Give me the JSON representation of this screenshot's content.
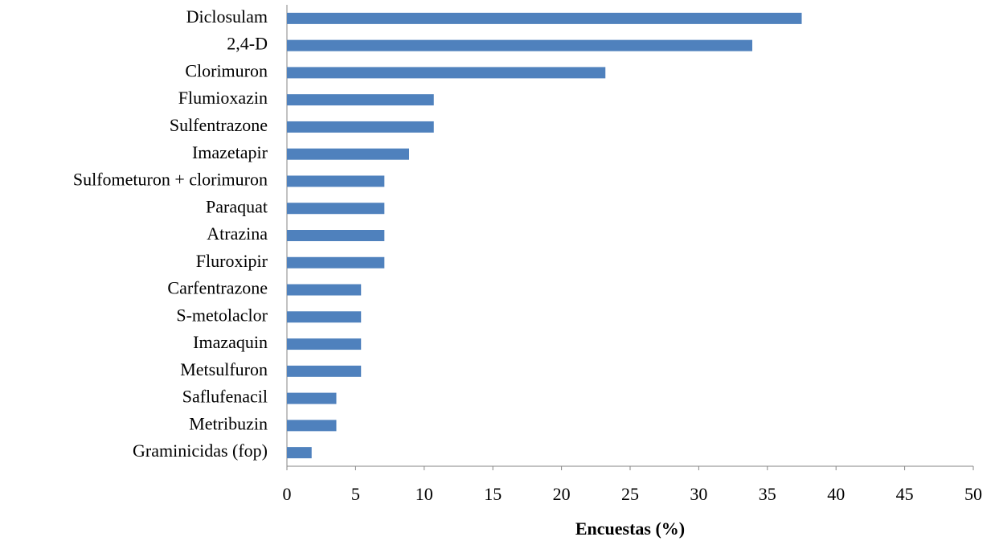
{
  "chart_data": {
    "type": "bar",
    "orientation": "horizontal",
    "x_label": "Encuestas (%)",
    "categories": [
      "Diclosulam",
      "2,4-D",
      "Clorimuron",
      "Flumioxazin",
      "Sulfentrazone",
      "Imazetapir",
      "Sulfometuron + clorimuron",
      "Paraquat",
      "Atrazina",
      "Fluroxipir",
      "Carfentrazone",
      "S-metolaclor",
      "Imazaquin",
      "Metsulfuron",
      "Saflufenacil",
      "Metribuzin",
      "Graminicidas (fop)"
    ],
    "values": [
      37.5,
      33.9,
      23.2,
      10.7,
      10.7,
      8.9,
      7.1,
      7.1,
      7.1,
      7.1,
      5.4,
      5.4,
      5.4,
      5.4,
      3.6,
      3.6,
      1.8
    ],
    "color": "#4f81bd",
    "xlim": [
      0,
      50
    ],
    "xticks": [
      0,
      5,
      10,
      15,
      20,
      25,
      30,
      35,
      40,
      45,
      50
    ],
    "grid": false
  }
}
